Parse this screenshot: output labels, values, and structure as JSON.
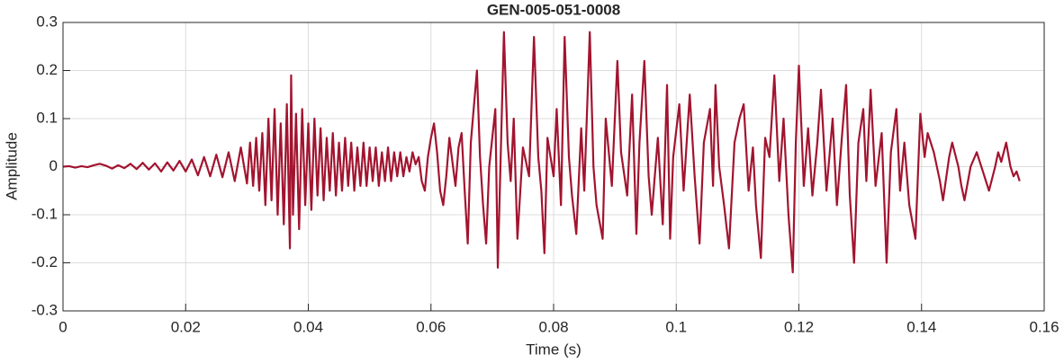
{
  "chart_data": {
    "type": "line",
    "title": "GEN-005-051-0008",
    "xlabel": "Time (s)",
    "ylabel": "Amplitude",
    "color": "#a2142f",
    "grid": true,
    "xlim": [
      0,
      0.16
    ],
    "xticks": [
      0,
      0.02,
      0.04,
      0.06,
      0.08,
      0.1,
      0.12,
      0.14,
      0.16
    ],
    "ylim": [
      -0.3,
      0.3
    ],
    "yticks": [
      -0.3,
      -0.2,
      -0.1,
      0,
      0.1,
      0.2,
      0.3
    ],
    "x": [
      0,
      0.001,
      0.002,
      0.003,
      0.004,
      0.005,
      0.006,
      0.007,
      0.008,
      0.009,
      0.01,
      0.011,
      0.012,
      0.013,
      0.014,
      0.015,
      0.016,
      0.017,
      0.018,
      0.019,
      0.02,
      0.021,
      0.022,
      0.023,
      0.024,
      0.025,
      0.026,
      0.027,
      0.028,
      0.029,
      0.03,
      0.0305,
      0.031,
      0.0315,
      0.032,
      0.0325,
      0.033,
      0.0335,
      0.034,
      0.0345,
      0.035,
      0.0355,
      0.036,
      0.0365,
      0.037,
      0.0372,
      0.0375,
      0.038,
      0.0385,
      0.039,
      0.0395,
      0.04,
      0.0405,
      0.041,
      0.0415,
      0.042,
      0.0425,
      0.043,
      0.0435,
      0.044,
      0.0445,
      0.045,
      0.0455,
      0.046,
      0.0465,
      0.047,
      0.0475,
      0.048,
      0.0485,
      0.049,
      0.0495,
      0.05,
      0.0505,
      0.051,
      0.0515,
      0.052,
      0.0525,
      0.053,
      0.0535,
      0.054,
      0.0545,
      0.055,
      0.0555,
      0.056,
      0.0565,
      0.057,
      0.0575,
      0.058,
      0.0585,
      0.059,
      0.0595,
      0.06,
      0.0605,
      0.061,
      0.0615,
      0.062,
      0.0625,
      0.063,
      0.0635,
      0.064,
      0.0645,
      0.065,
      0.0655,
      0.066,
      0.0665,
      0.0675,
      0.068,
      0.0685,
      0.069,
      0.0695,
      0.0705,
      0.0709,
      0.0719,
      0.0725,
      0.073,
      0.0735,
      0.0741,
      0.075,
      0.076,
      0.0768,
      0.0775,
      0.078,
      0.0785,
      0.079,
      0.08,
      0.0805,
      0.0812,
      0.0818,
      0.0825,
      0.083,
      0.0837,
      0.0845,
      0.085,
      0.0859,
      0.0865,
      0.087,
      0.088,
      0.0885,
      0.0895,
      0.0904,
      0.091,
      0.092,
      0.0928,
      0.0935,
      0.094,
      0.0948,
      0.0955,
      0.096,
      0.097,
      0.0978,
      0.0985,
      0.099,
      0.0995,
      0.1005,
      0.1012,
      0.1022,
      0.103,
      0.1038,
      0.1045,
      0.1055,
      0.106,
      0.1064,
      0.107,
      0.1078,
      0.1086,
      0.1095,
      0.1103,
      0.111,
      0.1118,
      0.1125,
      0.113,
      0.1138,
      0.1145,
      0.1152,
      0.116,
      0.1168,
      0.1175,
      0.1183,
      0.119,
      0.1195,
      0.12,
      0.1208,
      0.1215,
      0.1222,
      0.123,
      0.1236,
      0.1245,
      0.1255,
      0.1262,
      0.127,
      0.1277,
      0.1283,
      0.129,
      0.1297,
      0.1305,
      0.131,
      0.1317,
      0.1325,
      0.1335,
      0.1343,
      0.135,
      0.1359,
      0.1365,
      0.1372,
      0.138,
      0.139,
      0.1398,
      0.1405,
      0.141,
      0.142,
      0.143,
      0.1435,
      0.1445,
      0.145,
      0.146,
      0.1465,
      0.147,
      0.148,
      0.149,
      0.15,
      0.151,
      0.152,
      0.1525,
      0.153,
      0.1538,
      0.1545,
      0.155,
      0.1555,
      0.156
    ],
    "values": [
      0,
      0.001,
      -0.002,
      0.001,
      -0.001,
      0.003,
      0.006,
      0.002,
      -0.004,
      0.003,
      -0.003,
      0.006,
      -0.005,
      0.008,
      -0.006,
      0.007,
      -0.01,
      0.009,
      -0.008,
      0.012,
      -0.01,
      0.015,
      -0.018,
      0.02,
      -0.02,
      0.025,
      -0.022,
      0.03,
      -0.03,
      0.04,
      -0.035,
      0.05,
      -0.04,
      0.06,
      -0.05,
      0.07,
      -0.08,
      0.1,
      -0.07,
      0.12,
      -0.1,
      0.09,
      -0.12,
      0.13,
      -0.17,
      0.19,
      -0.1,
      0.11,
      -0.13,
      0.12,
      -0.08,
      0.09,
      -0.09,
      0.1,
      -0.06,
      0.08,
      -0.07,
      0.06,
      -0.05,
      0.07,
      -0.06,
      0.05,
      -0.05,
      0.06,
      -0.04,
      0.05,
      -0.05,
      0.04,
      -0.04,
      0.05,
      -0.04,
      0.04,
      -0.03,
      0.04,
      -0.04,
      0.03,
      -0.03,
      0.04,
      -0.03,
      0.03,
      -0.02,
      0.03,
      -0.02,
      0.02,
      -0.01,
      0.03,
      0.005,
      0.02,
      -0.03,
      -0.05,
      0.02,
      0.06,
      0.09,
      0.03,
      -0.05,
      -0.08,
      -0.02,
      0.06,
      0.01,
      -0.04,
      0.04,
      0.07,
      -0.05,
      -0.16,
      0.05,
      0.2,
      0.02,
      -0.08,
      -0.16,
      0,
      0.12,
      -0.21,
      0.28,
      0.05,
      -0.03,
      0.1,
      -0.15,
      0.04,
      -0.02,
      0.27,
      0.02,
      -0.05,
      -0.18,
      0.06,
      -0.02,
      0.12,
      -0.08,
      0.27,
      0.02,
      -0.06,
      -0.14,
      0.08,
      -0.05,
      0.28,
      0,
      -0.08,
      -0.15,
      0.1,
      -0.04,
      0.22,
      0.03,
      -0.06,
      0.15,
      -0.14,
      0.05,
      0.22,
      -0.02,
      -0.1,
      0.06,
      -0.12,
      0.17,
      -0.15,
      0.02,
      0.13,
      -0.05,
      0.15,
      -0.02,
      -0.16,
      0.05,
      0.12,
      -0.04,
      0.17,
      0,
      -0.08,
      -0.17,
      0.05,
      0.1,
      0.13,
      -0.05,
      0.04,
      -0.08,
      -0.19,
      0.06,
      0.02,
      0.19,
      -0.03,
      0.1,
      -0.1,
      -0.22,
      0.05,
      0.21,
      -0.04,
      0.08,
      -0.06,
      0.05,
      0.16,
      -0.05,
      0.1,
      -0.08,
      0.06,
      0.17,
      -0.06,
      -0.2,
      0.05,
      0.12,
      -0.03,
      0.16,
      -0.04,
      0.07,
      -0.2,
      0.03,
      0.12,
      -0.05,
      0.05,
      -0.08,
      -0.15,
      0.11,
      0.02,
      0.07,
      0.03,
      -0.03,
      -0.07,
      0.02,
      0.05,
      0,
      -0.04,
      -0.07,
      0,
      0.03,
      -0.01,
      -0.05,
      0,
      0.03,
      0.01,
      0.05,
      0,
      -0.02,
      -0.01,
      -0.03
    ]
  }
}
